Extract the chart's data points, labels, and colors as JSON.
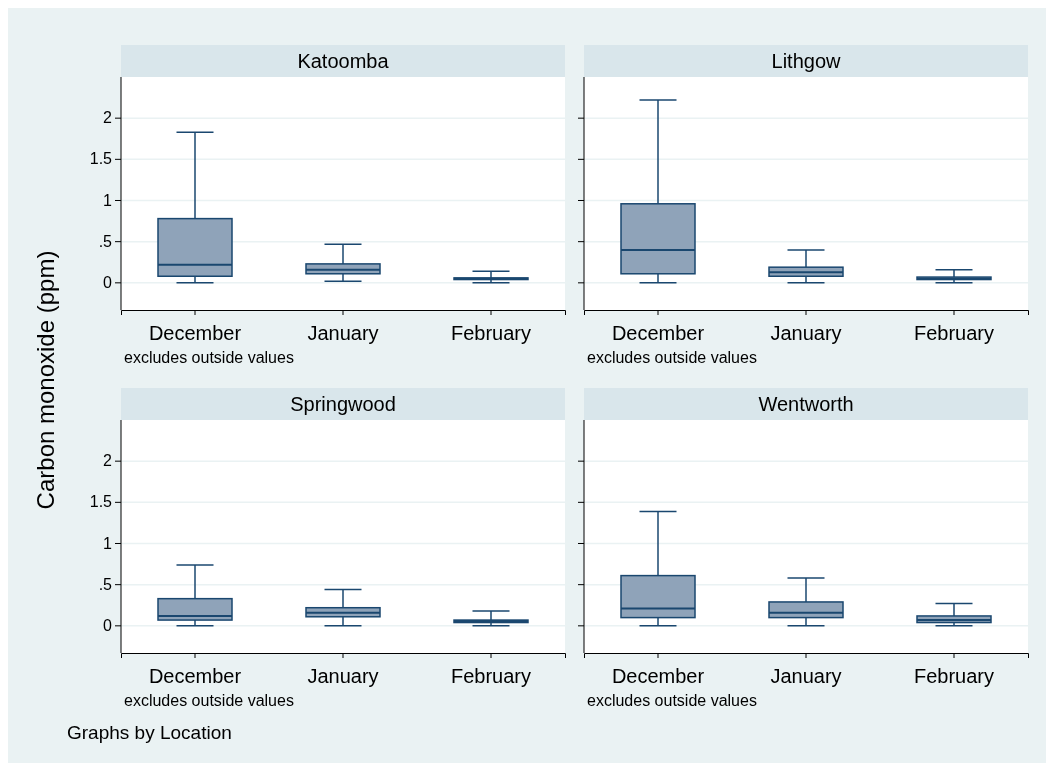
{
  "chart_data": [
    {
      "type": "box",
      "title": "Katoomba",
      "ylabel": "Carbon monoxide (ppm)",
      "categories": [
        "December",
        "January",
        "February"
      ],
      "ylim": [
        -0.33,
        2.5
      ],
      "yticks": [
        0,
        {
          "value": 0.5,
          "label": ".5"
        },
        1,
        1.5,
        2
      ],
      "grid": "y",
      "color": "#8fa3b9",
      "annotations": [
        "excludes outside values"
      ],
      "boxes": [
        {
          "low": 0,
          "q1": 0.08,
          "median": 0.22,
          "q3": 0.78,
          "high": 1.83
        },
        {
          "low": 0.02,
          "q1": 0.11,
          "median": 0.16,
          "q3": 0.23,
          "high": 0.47
        },
        {
          "low": 0,
          "q1": 0.04,
          "median": 0.05,
          "q3": 0.06,
          "high": 0.14
        }
      ]
    },
    {
      "type": "box",
      "title": "Lithgow",
      "categories": [
        "December",
        "January",
        "February"
      ],
      "ylim": [
        -0.33,
        2.5
      ],
      "yticks": [
        0,
        0.5,
        1,
        1.5,
        2
      ],
      "grid": "y",
      "tick_labels": "x",
      "color": "#8fa3b9",
      "annotations": [
        "excludes outside values"
      ],
      "boxes": [
        {
          "low": 0,
          "q1": 0.11,
          "median": 0.4,
          "q3": 0.96,
          "high": 2.22
        },
        {
          "low": 0,
          "q1": 0.08,
          "median": 0.13,
          "q3": 0.19,
          "high": 0.4
        },
        {
          "low": 0,
          "q1": 0.04,
          "median": 0.05,
          "q3": 0.07,
          "high": 0.16
        }
      ]
    },
    {
      "type": "box",
      "title": "Springwood",
      "categories": [
        "December",
        "January",
        "February"
      ],
      "ylim": [
        -0.33,
        2.5
      ],
      "yticks": [
        0,
        {
          "value": 0.5,
          "label": ".5"
        },
        1,
        1.5,
        2
      ],
      "grid": "y",
      "color": "#8fa3b9",
      "annotations": [
        "excludes outside values",
        "Graphs by Location"
      ],
      "boxes": [
        {
          "low": 0,
          "q1": 0.07,
          "median": 0.12,
          "q3": 0.33,
          "high": 0.74
        },
        {
          "low": 0,
          "q1": 0.11,
          "median": 0.16,
          "q3": 0.22,
          "high": 0.44
        },
        {
          "low": 0,
          "q1": 0.04,
          "median": 0.06,
          "q3": 0.07,
          "high": 0.18
        }
      ]
    },
    {
      "type": "box",
      "title": "Wentworth",
      "categories": [
        "December",
        "January",
        "February"
      ],
      "ylim": [
        -0.33,
        2.5
      ],
      "yticks": [
        0,
        0.5,
        1,
        1.5,
        2
      ],
      "grid": "y",
      "tick_labels": "x",
      "color": "#8fa3b9",
      "annotations": [
        "excludes outside values"
      ],
      "boxes": [
        {
          "low": 0,
          "q1": 0.1,
          "median": 0.21,
          "q3": 0.61,
          "high": 1.39
        },
        {
          "low": 0,
          "q1": 0.1,
          "median": 0.16,
          "q3": 0.29,
          "high": 0.58
        },
        {
          "low": 0,
          "q1": 0.04,
          "median": 0.07,
          "q3": 0.12,
          "high": 0.27
        }
      ]
    }
  ]
}
